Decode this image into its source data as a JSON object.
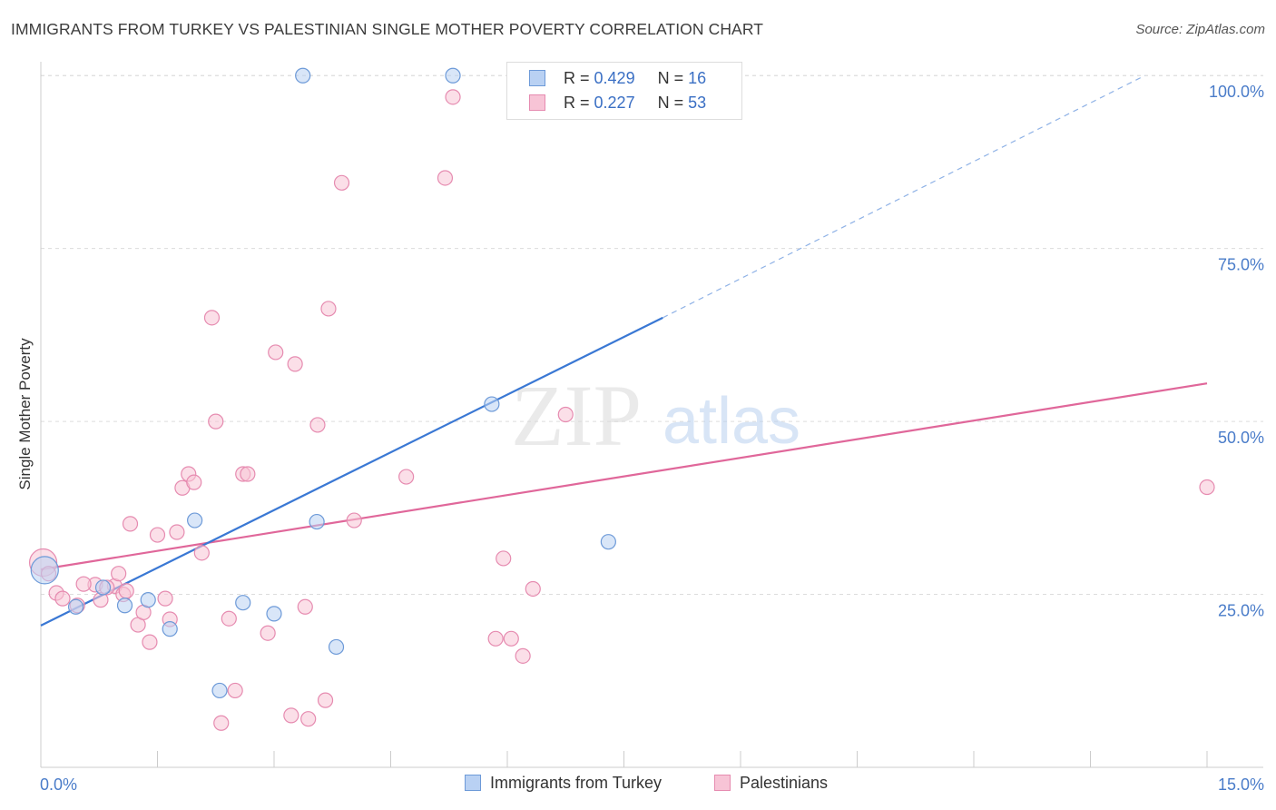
{
  "title": "IMMIGRANTS FROM TURKEY VS PALESTINIAN SINGLE MOTHER POVERTY CORRELATION CHART",
  "source": "Source: ZipAtlas.com",
  "watermark": {
    "zip": "ZIP",
    "atlas": "atlas"
  },
  "colors": {
    "blue": "#3a78d4",
    "blue_fill": "#b9d1f3",
    "pink": "#e0679a",
    "pink_fill": "#f7c4d6",
    "axis_text": "#4a7cc9"
  },
  "legend": {
    "rows": [
      {
        "r_label": "R =",
        "r_value": "0.429",
        "n_label": "N =",
        "n_value": "16"
      },
      {
        "r_label": "R =",
        "r_value": "0.227",
        "n_label": "N =",
        "n_value": "53"
      }
    ]
  },
  "bottom_legend": [
    "Immigrants from Turkey",
    "Palestinians"
  ],
  "chart_data": {
    "type": "scatter",
    "title": "IMMIGRANTS FROM TURKEY VS PALESTINIAN SINGLE MOTHER POVERTY CORRELATION CHART",
    "xlabel": "",
    "ylabel": "Single Mother Poverty",
    "xlim": [
      0,
      15
    ],
    "ylim": [
      0,
      102
    ],
    "x_tick_labels": [
      "0.0%",
      "15.0%"
    ],
    "y_ticks": [
      25,
      50,
      75,
      100
    ],
    "y_tick_labels": [
      "25.0%",
      "50.0%",
      "75.0%",
      "100.0%"
    ],
    "grid": true,
    "legend_position": "top-center",
    "series": [
      {
        "name": "Immigrants from Turkey",
        "r": 0.429,
        "n": 16,
        "points": [
          [
            0.05,
            28.5
          ],
          [
            0.45,
            23.2
          ],
          [
            0.8,
            26.0
          ],
          [
            1.08,
            23.4
          ],
          [
            1.38,
            24.2
          ],
          [
            1.66,
            20.0
          ],
          [
            1.98,
            35.7
          ],
          [
            2.3,
            11.1
          ],
          [
            2.6,
            23.8
          ],
          [
            3.0,
            22.2
          ],
          [
            3.37,
            100.0
          ],
          [
            3.55,
            35.5
          ],
          [
            3.8,
            17.4
          ],
          [
            5.3,
            100.0
          ],
          [
            5.8,
            52.5
          ],
          [
            7.3,
            32.6
          ]
        ],
        "trend": {
          "x0": 0,
          "y0": 20.5,
          "x1": 8.0,
          "y1": 65.0,
          "dash_x1": 14.2,
          "dash_y1": 100.0
        }
      },
      {
        "name": "Palestinians",
        "r": 0.227,
        "n": 53,
        "points": [
          [
            0.03,
            29.6
          ],
          [
            0.2,
            25.2
          ],
          [
            0.28,
            24.4
          ],
          [
            0.47,
            23.4
          ],
          [
            0.7,
            26.4
          ],
          [
            0.77,
            24.2
          ],
          [
            0.95,
            26.2
          ],
          [
            1.06,
            25.0
          ],
          [
            1.0,
            28.0
          ],
          [
            1.15,
            35.2
          ],
          [
            1.25,
            20.6
          ],
          [
            1.32,
            22.4
          ],
          [
            1.4,
            18.1
          ],
          [
            1.5,
            33.6
          ],
          [
            1.6,
            24.4
          ],
          [
            1.66,
            21.4
          ],
          [
            1.75,
            34.0
          ],
          [
            1.82,
            40.4
          ],
          [
            1.9,
            42.4
          ],
          [
            1.97,
            41.2
          ],
          [
            2.07,
            31.0
          ],
          [
            2.2,
            65.0
          ],
          [
            2.25,
            50.0
          ],
          [
            2.32,
            6.4
          ],
          [
            2.42,
            21.5
          ],
          [
            2.5,
            11.1
          ],
          [
            2.6,
            42.4
          ],
          [
            2.66,
            42.4
          ],
          [
            2.92,
            19.4
          ],
          [
            3.02,
            60.0
          ],
          [
            3.22,
            7.5
          ],
          [
            3.27,
            58.3
          ],
          [
            3.4,
            23.2
          ],
          [
            3.44,
            7.0
          ],
          [
            3.56,
            49.5
          ],
          [
            3.66,
            9.7
          ],
          [
            3.7,
            66.3
          ],
          [
            3.87,
            84.5
          ],
          [
            4.03,
            35.7
          ],
          [
            4.7,
            42.0
          ],
          [
            5.2,
            85.2
          ],
          [
            5.3,
            96.9
          ],
          [
            5.85,
            18.6
          ],
          [
            5.95,
            30.2
          ],
          [
            6.05,
            18.6
          ],
          [
            6.2,
            16.1
          ],
          [
            6.33,
            25.8
          ],
          [
            6.75,
            51.0
          ],
          [
            15.0,
            40.5
          ],
          [
            0.1,
            28.0
          ],
          [
            0.55,
            26.5
          ],
          [
            0.85,
            26.0
          ],
          [
            1.1,
            25.5
          ]
        ],
        "trend": {
          "x0": 0,
          "y0": 28.6,
          "x1": 15.0,
          "y1": 55.5
        }
      }
    ]
  }
}
